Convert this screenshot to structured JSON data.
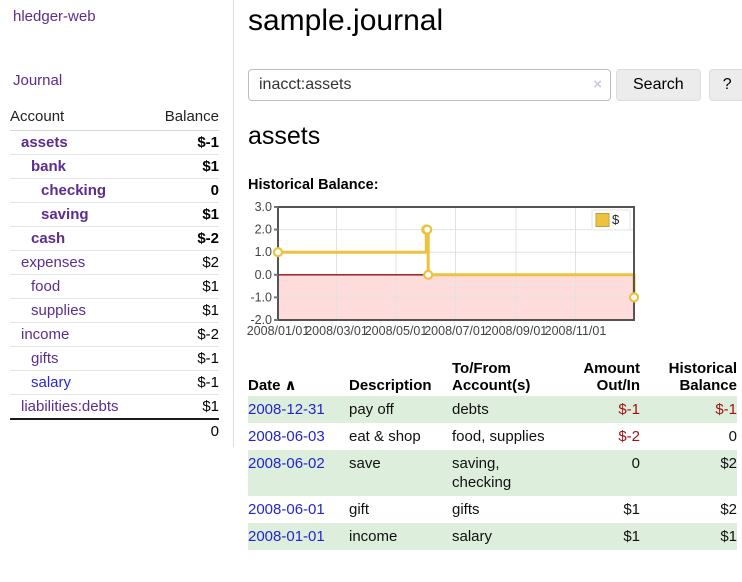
{
  "colors": {
    "purple_link": "#5b2d90",
    "blue_link": "#2a28d7",
    "negative_strong": "#a11212",
    "negative_soft": "#c47878",
    "row_stripe_green": "#ddeedd",
    "series_gold": "#edc240",
    "chart_negative_area": "#ffdcdc",
    "chart_zero_line": "#8f1010",
    "chart_border": "#545454"
  },
  "brand": {
    "label": "hledger-web"
  },
  "nav": {
    "journal_label": "Journal"
  },
  "sidebar_accounts": {
    "col_account": "Account",
    "col_balance": "Balance",
    "rows": [
      {
        "name": "assets",
        "balance": "$-1",
        "depth": 1,
        "bold": true,
        "balance_style": "neg-strong"
      },
      {
        "name": "bank",
        "balance": "$1",
        "depth": 2,
        "bold": true,
        "balance_style": "pos"
      },
      {
        "name": "checking",
        "balance": "0",
        "depth": 3,
        "bold": true,
        "balance_style": "pos"
      },
      {
        "name": "saving",
        "balance": "$1",
        "depth": 3,
        "bold": true,
        "balance_style": "pos"
      },
      {
        "name": "cash",
        "balance": "$-2",
        "depth": 2,
        "bold": true,
        "balance_style": "neg-strong"
      },
      {
        "name": "expenses",
        "balance": "$2",
        "depth": 1,
        "bold": false,
        "balance_style": "pos"
      },
      {
        "name": "food",
        "balance": "$1",
        "depth": 2,
        "bold": false,
        "balance_style": "pos"
      },
      {
        "name": "supplies",
        "balance": "$1",
        "depth": 2,
        "bold": false,
        "balance_style": "pos"
      },
      {
        "name": "income",
        "balance": "$-2",
        "depth": 1,
        "bold": false,
        "balance_style": "neg-soft"
      },
      {
        "name": "gifts",
        "balance": "$-1",
        "depth": 2,
        "bold": false,
        "balance_style": "neg-soft"
      },
      {
        "name": "salary",
        "balance": "$-1",
        "depth": 2,
        "bold": false,
        "balance_style": "neg-soft",
        "link_color": "blue"
      },
      {
        "name": "liabilities:debts",
        "balance": "$1",
        "depth": 1,
        "bold": false,
        "balance_style": "pos"
      }
    ],
    "total": "0"
  },
  "page": {
    "title": "sample.journal"
  },
  "search": {
    "value": "inacct:assets",
    "clear_icon": "×",
    "submit_label": "Search",
    "help_label": "?"
  },
  "account_view": {
    "heading": "assets",
    "chart_title": "Historical Balance:"
  },
  "chart_data": {
    "type": "line",
    "step": true,
    "title": "Historical Balance:",
    "series": [
      {
        "name": "$",
        "color": "#edc240",
        "points": [
          {
            "date": "2008-01-01",
            "day": 0,
            "value": 1
          },
          {
            "date": "2008-06-01",
            "day": 152,
            "value": 2
          },
          {
            "date": "2008-06-02",
            "day": 153,
            "value": 2
          },
          {
            "date": "2008-06-03",
            "day": 154,
            "value": 0
          },
          {
            "date": "2008-12-31",
            "day": 365,
            "value": -1
          }
        ]
      }
    ],
    "ylim": [
      -2.0,
      3.0
    ],
    "yticks": [
      "3.0",
      "2.0",
      "1.0",
      "0.0",
      "-1.0",
      "-2.0"
    ],
    "ytick_values": [
      3,
      2,
      1,
      0,
      -1,
      -2
    ],
    "xticks": [
      {
        "label": "2008/01/01",
        "day": 0
      },
      {
        "label": "2008/03/01",
        "day": 60
      },
      {
        "label": "2008/05/01",
        "day": 121
      },
      {
        "label": "2008/07/01",
        "day": 182
      },
      {
        "label": "2008/09/01",
        "day": 244
      },
      {
        "label": "2008/11/01",
        "day": 305
      }
    ],
    "x_range_days": [
      0,
      365
    ],
    "grid": true,
    "legend": {
      "label": "$",
      "position": "top-right"
    }
  },
  "register": {
    "headers": {
      "date": "Date",
      "sort_indicator": "∧",
      "description": "Description",
      "accounts": "To/From Account(s)",
      "amount": "Amount Out/In",
      "balance": "Historical Balance"
    },
    "rows": [
      {
        "date": "2008-12-31",
        "description": "pay off",
        "accounts": "debts",
        "amount": "$-1",
        "amount_style": "neg",
        "balance": "$-1",
        "balance_style": "neg"
      },
      {
        "date": "2008-06-03",
        "description": "eat & shop",
        "accounts": "food, supplies",
        "amount": "$-2",
        "amount_style": "neg",
        "balance": "0",
        "balance_style": "pos"
      },
      {
        "date": "2008-06-02",
        "description": "save",
        "accounts": "saving, checking",
        "amount": "0",
        "amount_style": "pos",
        "balance": "$2",
        "balance_style": "pos"
      },
      {
        "date": "2008-06-01",
        "description": "gift",
        "accounts": "gifts",
        "amount": "$1",
        "amount_style": "pos",
        "balance": "$2",
        "balance_style": "pos"
      },
      {
        "date": "2008-01-01",
        "description": "income",
        "accounts": "salary",
        "amount": "$1",
        "amount_style": "pos",
        "balance": "$1",
        "balance_style": "pos"
      }
    ]
  }
}
